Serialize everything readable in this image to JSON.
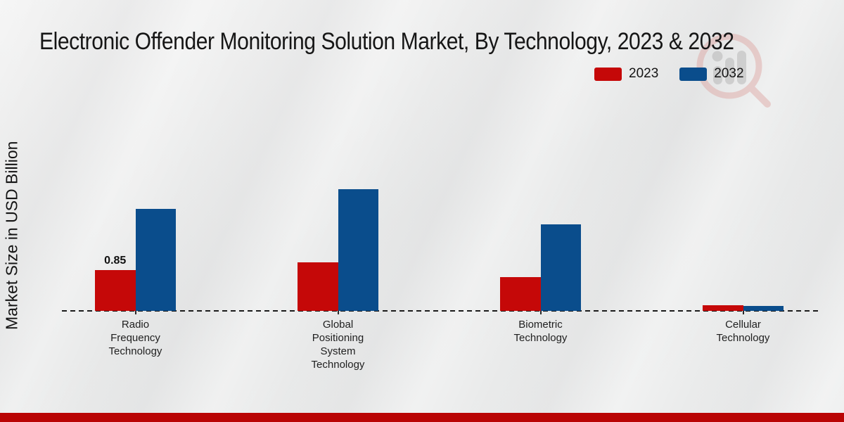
{
  "header": {
    "title": "Electronic Offender Monitoring Solution Market, By Technology, 2023 & 2032"
  },
  "legend": {
    "items": [
      {
        "label": "2023",
        "color": "#c50808"
      },
      {
        "label": "2032",
        "color": "#0a4d8c"
      }
    ]
  },
  "chart_data": {
    "type": "bar",
    "title": "Electronic Offender Monitoring Solution Market, By Technology, 2023 & 2032",
    "ylabel": "Market Size in USD Billion",
    "xlabel": "",
    "categories": [
      "Radio Frequency Technology",
      "Global Positioning System Technology",
      "Biometric Technology",
      "Cellular Technology"
    ],
    "category_lines": [
      [
        "Radio",
        "Frequency",
        "Technology"
      ],
      [
        "Global",
        "Positioning",
        "System",
        "Technology"
      ],
      [
        "Biometric",
        "Technology"
      ],
      [
        "Cellular",
        "Technology"
      ]
    ],
    "series": [
      {
        "name": "2023",
        "color": "#c50808",
        "values": [
          0.85,
          1.01,
          0.71,
          0.12
        ]
      },
      {
        "name": "2032",
        "color": "#0a4d8c",
        "values": [
          2.13,
          2.54,
          1.81,
          0.1
        ]
      }
    ],
    "annotations": [
      {
        "series": "2023",
        "category_index": 0,
        "text": "0.85"
      }
    ],
    "ylim": [
      0,
      3
    ],
    "grid": false,
    "y_axis_ticks_visible": false,
    "legend_position": "top-right",
    "baseline_style": "dashed"
  },
  "footer": {
    "accent_color": "#b90404"
  }
}
